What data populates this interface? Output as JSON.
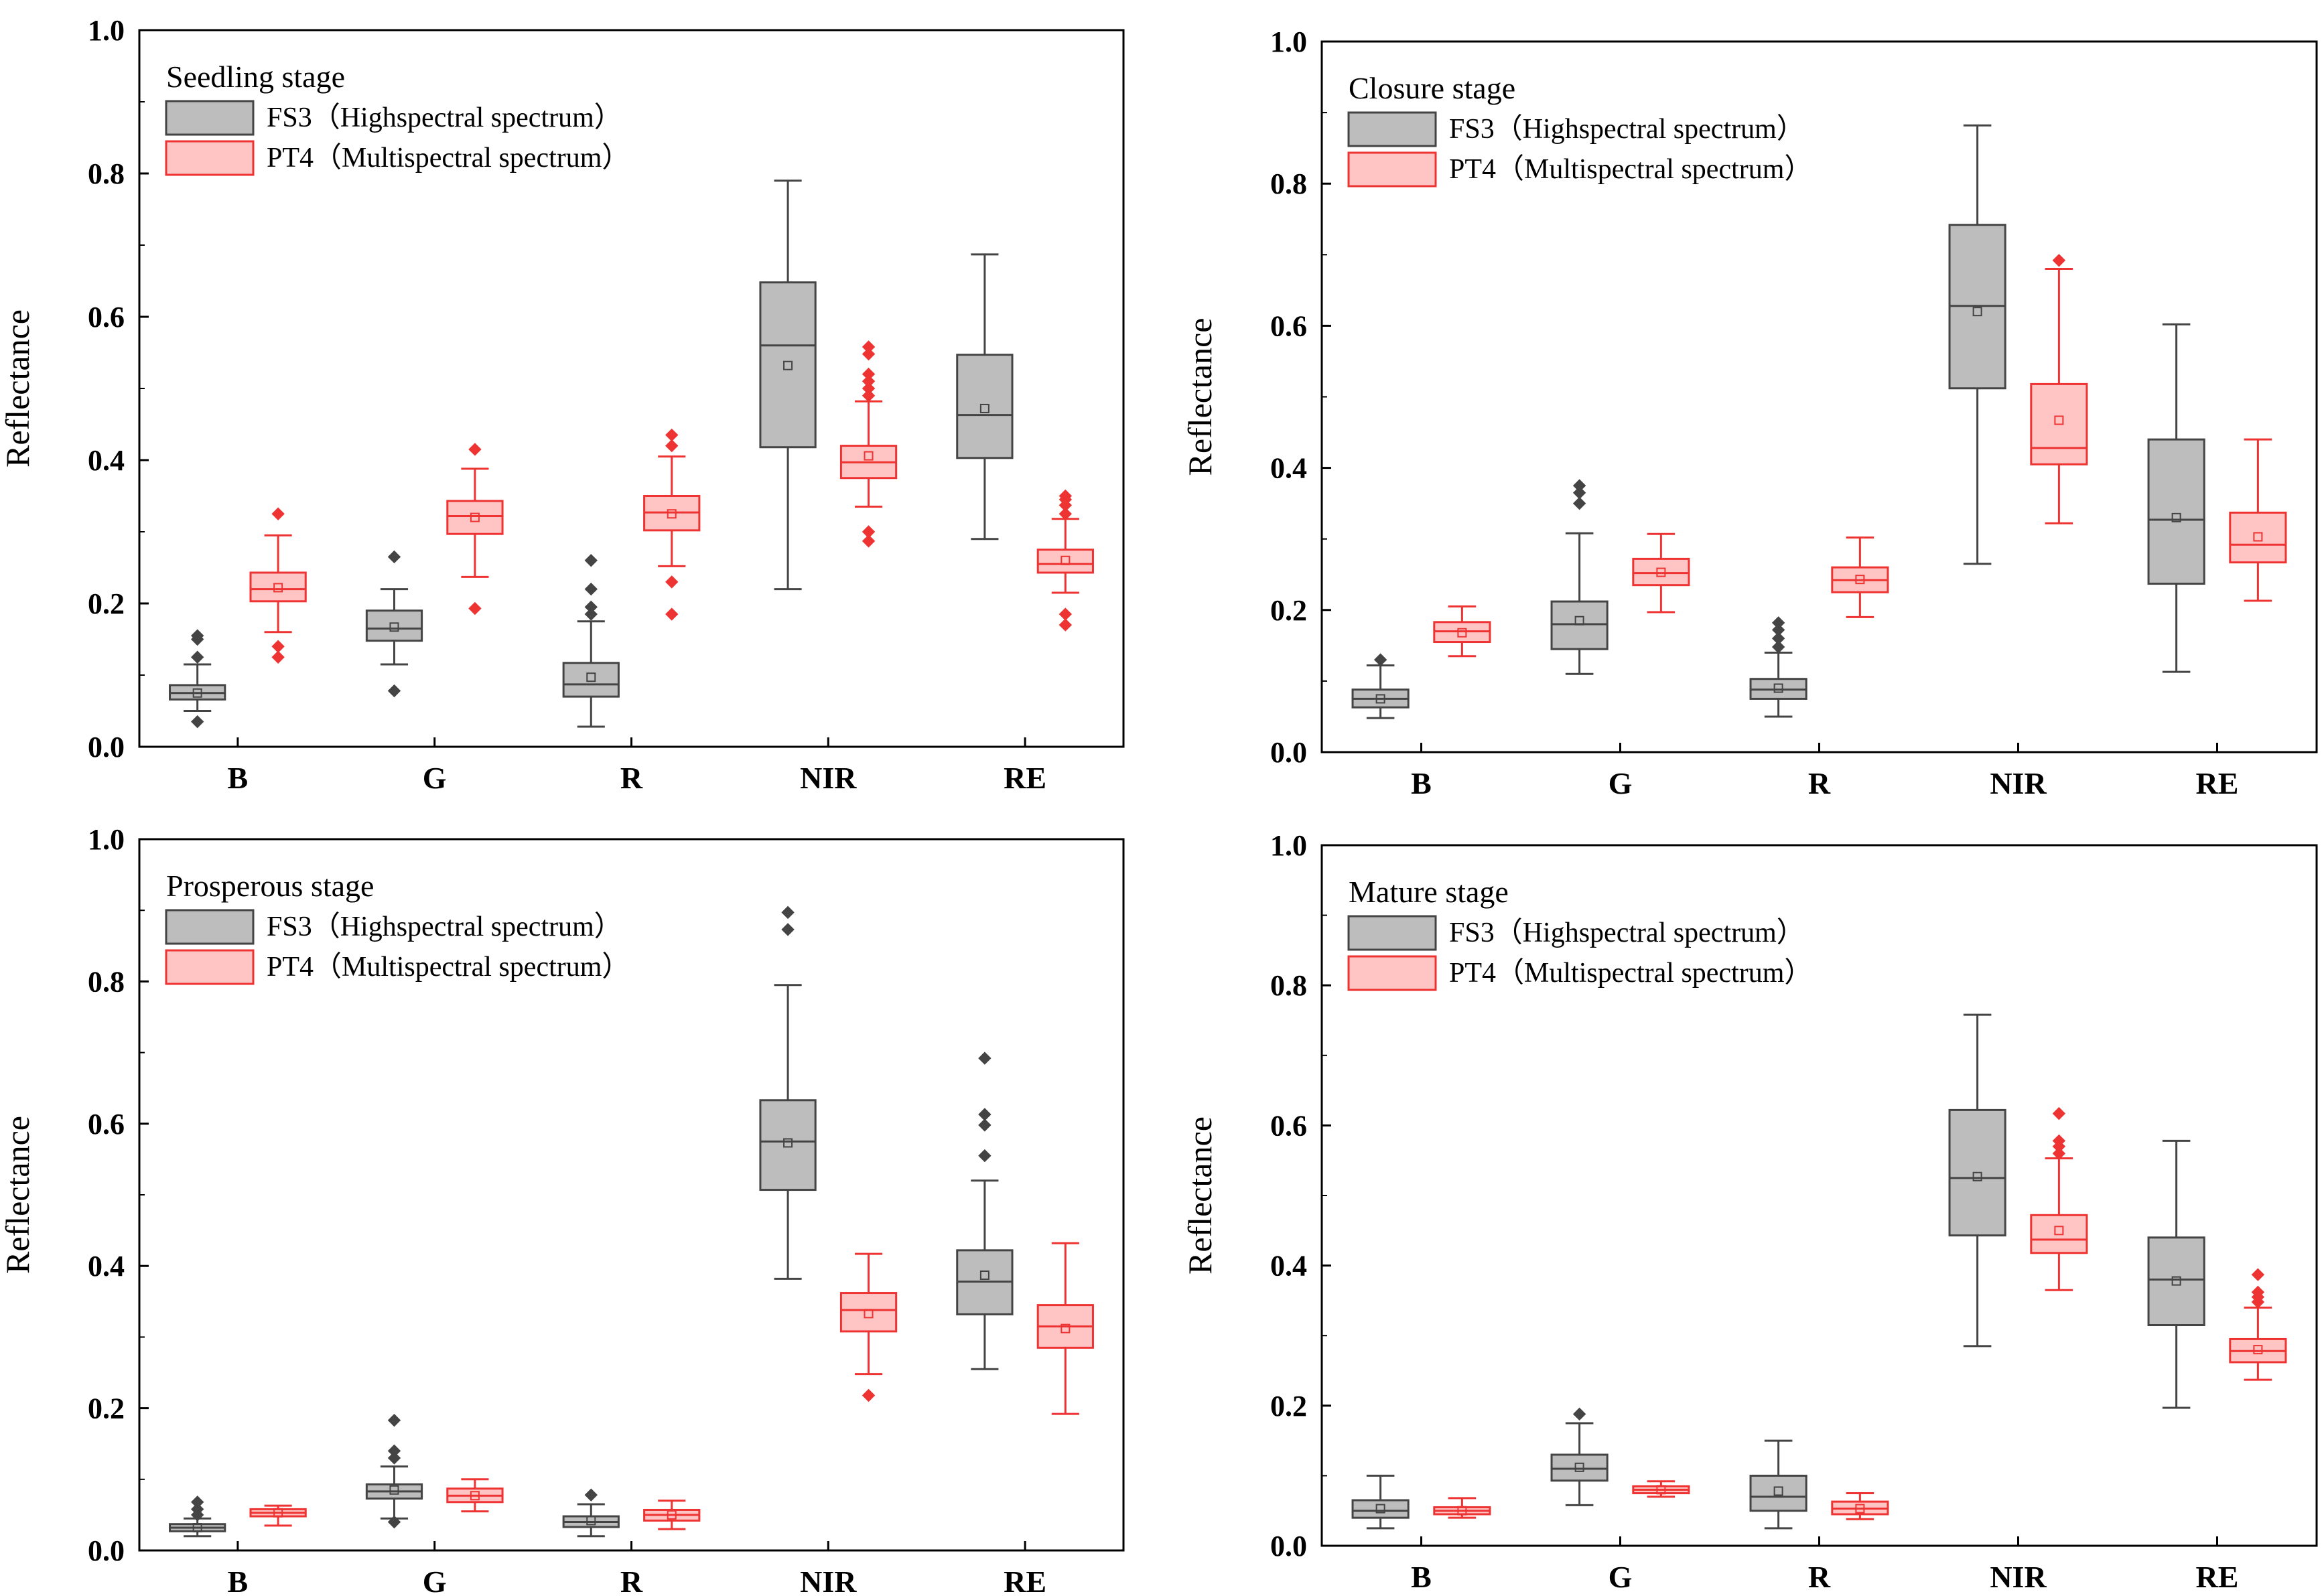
{
  "colors": {
    "fs3_fill": "#bdbdbd",
    "fs3_stroke": "#444444",
    "pt4_fill": "#ffc4c4",
    "pt4_stroke": "#ee3333",
    "axis": "#000000"
  },
  "chart_data": [
    {
      "type": "box",
      "title": "Seedling stage",
      "xlabel": "",
      "ylabel": "Reflectance",
      "ylim": [
        0,
        1.0
      ],
      "yticks": [
        "0.0",
        "0.2",
        "0.4",
        "0.6",
        "0.8",
        "1.0"
      ],
      "categories": [
        "B",
        "G",
        "R",
        "NIR",
        "RE"
      ],
      "legend": [
        "FS3（Highspectral spectrum）",
        "PT4（Multispectral spectrum）"
      ],
      "series": [
        {
          "name": "FS3（Highspectral spectrum）",
          "boxes": [
            {
              "min": 0.05,
              "q1": 0.066,
              "median": 0.075,
              "q3": 0.086,
              "max": 0.115,
              "mean": 0.075,
              "outliers": [
                0.035,
                0.125,
                0.15,
                0.155
              ]
            },
            {
              "min": 0.115,
              "q1": 0.148,
              "median": 0.165,
              "q3": 0.19,
              "max": 0.22,
              "mean": 0.167,
              "outliers": [
                0.078,
                0.265
              ]
            },
            {
              "min": 0.028,
              "q1": 0.07,
              "median": 0.087,
              "q3": 0.117,
              "max": 0.175,
              "mean": 0.097,
              "outliers": [
                0.185,
                0.195,
                0.22,
                0.26
              ]
            },
            {
              "min": 0.22,
              "q1": 0.418,
              "median": 0.56,
              "q3": 0.648,
              "max": 0.79,
              "mean": 0.532,
              "outliers": []
            },
            {
              "min": 0.29,
              "q1": 0.403,
              "median": 0.463,
              "q3": 0.547,
              "max": 0.687,
              "mean": 0.472,
              "outliers": []
            }
          ]
        },
        {
          "name": "PT4（Multispectral spectrum）",
          "boxes": [
            {
              "min": 0.16,
              "q1": 0.203,
              "median": 0.22,
              "q3": 0.243,
              "max": 0.295,
              "mean": 0.222,
              "outliers": [
                0.125,
                0.14,
                0.325
              ]
            },
            {
              "min": 0.237,
              "q1": 0.297,
              "median": 0.322,
              "q3": 0.343,
              "max": 0.388,
              "mean": 0.32,
              "outliers": [
                0.193,
                0.415
              ]
            },
            {
              "min": 0.252,
              "q1": 0.302,
              "median": 0.327,
              "q3": 0.35,
              "max": 0.405,
              "mean": 0.325,
              "outliers": [
                0.185,
                0.23,
                0.42,
                0.435
              ]
            },
            {
              "min": 0.335,
              "q1": 0.375,
              "median": 0.397,
              "q3": 0.42,
              "max": 0.482,
              "mean": 0.406,
              "outliers": [
                0.287,
                0.3,
                0.49,
                0.5,
                0.51,
                0.52,
                0.548,
                0.558
              ]
            },
            {
              "min": 0.215,
              "q1": 0.243,
              "median": 0.255,
              "q3": 0.275,
              "max": 0.318,
              "mean": 0.26,
              "outliers": [
                0.17,
                0.185,
                0.325,
                0.337,
                0.345,
                0.35
              ]
            }
          ]
        }
      ]
    },
    {
      "type": "box",
      "title": "Closure stage",
      "xlabel": "",
      "ylabel": "Reflectance",
      "ylim": [
        0,
        1.0
      ],
      "yticks": [
        "0.0",
        "0.2",
        "0.4",
        "0.6",
        "0.8",
        "1.0"
      ],
      "categories": [
        "B",
        "G",
        "R",
        "NIR",
        "RE"
      ],
      "legend": [
        "FS3（Highspectral spectrum）",
        "PT4（Multispectral spectrum）"
      ],
      "series": [
        {
          "name": "FS3（Highspectral spectrum）",
          "boxes": [
            {
              "min": 0.048,
              "q1": 0.063,
              "median": 0.075,
              "q3": 0.088,
              "max": 0.122,
              "mean": 0.075,
              "outliers": [
                0.13
              ]
            },
            {
              "min": 0.11,
              "q1": 0.145,
              "median": 0.18,
              "q3": 0.212,
              "max": 0.308,
              "mean": 0.185,
              "outliers": [
                0.35,
                0.365,
                0.375
              ]
            },
            {
              "min": 0.05,
              "q1": 0.075,
              "median": 0.088,
              "q3": 0.103,
              "max": 0.14,
              "mean": 0.09,
              "outliers": [
                0.148,
                0.16,
                0.172,
                0.182
              ]
            },
            {
              "min": 0.265,
              "q1": 0.512,
              "median": 0.628,
              "q3": 0.742,
              "max": 0.882,
              "mean": 0.62,
              "outliers": []
            },
            {
              "min": 0.113,
              "q1": 0.237,
              "median": 0.327,
              "q3": 0.44,
              "max": 0.602,
              "mean": 0.33,
              "outliers": []
            }
          ]
        },
        {
          "name": "PT4（Multispectral spectrum）",
          "boxes": [
            {
              "min": 0.135,
              "q1": 0.155,
              "median": 0.17,
              "q3": 0.183,
              "max": 0.205,
              "mean": 0.168,
              "outliers": []
            },
            {
              "min": 0.197,
              "q1": 0.235,
              "median": 0.252,
              "q3": 0.272,
              "max": 0.307,
              "mean": 0.253,
              "outliers": []
            },
            {
              "min": 0.19,
              "q1": 0.225,
              "median": 0.242,
              "q3": 0.26,
              "max": 0.302,
              "mean": 0.243,
              "outliers": []
            },
            {
              "min": 0.322,
              "q1": 0.405,
              "median": 0.428,
              "q3": 0.518,
              "max": 0.68,
              "mean": 0.467,
              "outliers": [
                0.692
              ]
            },
            {
              "min": 0.213,
              "q1": 0.267,
              "median": 0.292,
              "q3": 0.337,
              "max": 0.44,
              "mean": 0.303,
              "outliers": []
            }
          ]
        }
      ]
    },
    {
      "type": "box",
      "title": "Prosperous stage",
      "xlabel": "",
      "ylabel": "Reflectance",
      "ylim": [
        0,
        1.0
      ],
      "yticks": [
        "0.0",
        "0.2",
        "0.4",
        "0.6",
        "0.8",
        "1.0"
      ],
      "categories": [
        "B",
        "G",
        "R",
        "NIR",
        "RE"
      ],
      "legend": [
        "FS3（Highspectral spectrum）",
        "PT4（Multispectral spectrum）"
      ],
      "series": [
        {
          "name": "FS3（Highspectral spectrum）",
          "boxes": [
            {
              "min": 0.02,
              "q1": 0.027,
              "median": 0.032,
              "q3": 0.037,
              "max": 0.045,
              "mean": 0.032,
              "outliers": [
                0.05,
                0.058,
                0.068
              ]
            },
            {
              "min": 0.045,
              "q1": 0.073,
              "median": 0.083,
              "q3": 0.093,
              "max": 0.118,
              "mean": 0.085,
              "outliers": [
                0.04,
                0.13,
                0.14,
                0.183
              ]
            },
            {
              "min": 0.02,
              "q1": 0.033,
              "median": 0.04,
              "q3": 0.048,
              "max": 0.065,
              "mean": 0.042,
              "outliers": [
                0.078
              ]
            },
            {
              "min": 0.382,
              "q1": 0.507,
              "median": 0.575,
              "q3": 0.633,
              "max": 0.795,
              "mean": 0.573,
              "outliers": [
                0.873,
                0.897
              ]
            },
            {
              "min": 0.255,
              "q1": 0.332,
              "median": 0.378,
              "q3": 0.422,
              "max": 0.52,
              "mean": 0.387,
              "outliers": [
                0.555,
                0.598,
                0.613,
                0.692
              ]
            }
          ]
        },
        {
          "name": "PT4（Multispectral spectrum）",
          "boxes": [
            {
              "min": 0.035,
              "q1": 0.048,
              "median": 0.053,
              "q3": 0.058,
              "max": 0.063,
              "mean": 0.053,
              "outliers": []
            },
            {
              "min": 0.055,
              "q1": 0.068,
              "median": 0.077,
              "q3": 0.087,
              "max": 0.1,
              "mean": 0.077,
              "outliers": []
            },
            {
              "min": 0.03,
              "q1": 0.042,
              "median": 0.05,
              "q3": 0.057,
              "max": 0.07,
              "mean": 0.05,
              "outliers": []
            },
            {
              "min": 0.248,
              "q1": 0.308,
              "median": 0.338,
              "q3": 0.362,
              "max": 0.417,
              "mean": 0.333,
              "outliers": [
                0.218
              ]
            },
            {
              "min": 0.192,
              "q1": 0.285,
              "median": 0.315,
              "q3": 0.345,
              "max": 0.432,
              "mean": 0.312,
              "outliers": []
            }
          ]
        }
      ]
    },
    {
      "type": "box",
      "title": "Mature stage",
      "xlabel": "",
      "ylabel": "Reflectance",
      "ylim": [
        0,
        1.0
      ],
      "yticks": [
        "0.0",
        "0.2",
        "0.4",
        "0.6",
        "0.8",
        "1.0"
      ],
      "categories": [
        "B",
        "G",
        "R",
        "NIR",
        "RE"
      ],
      "legend": [
        "FS3（Highspectral spectrum）",
        "PT4（Multispectral spectrum）"
      ],
      "series": [
        {
          "name": "FS3（Highspectral spectrum）",
          "boxes": [
            {
              "min": 0.025,
              "q1": 0.04,
              "median": 0.05,
              "q3": 0.065,
              "max": 0.1,
              "mean": 0.053,
              "outliers": []
            },
            {
              "min": 0.058,
              "q1": 0.093,
              "median": 0.11,
              "q3": 0.13,
              "max": 0.175,
              "mean": 0.112,
              "outliers": [
                0.188
              ]
            },
            {
              "min": 0.025,
              "q1": 0.05,
              "median": 0.07,
              "q3": 0.1,
              "max": 0.15,
              "mean": 0.078,
              "outliers": []
            },
            {
              "min": 0.285,
              "q1": 0.443,
              "median": 0.525,
              "q3": 0.622,
              "max": 0.758,
              "mean": 0.527,
              "outliers": []
            },
            {
              "min": 0.197,
              "q1": 0.315,
              "median": 0.38,
              "q3": 0.44,
              "max": 0.578,
              "mean": 0.378,
              "outliers": []
            }
          ]
        },
        {
          "name": "PT4（Multispectral spectrum）",
          "boxes": [
            {
              "min": 0.04,
              "q1": 0.045,
              "median": 0.05,
              "q3": 0.055,
              "max": 0.068,
              "mean": 0.05,
              "outliers": []
            },
            {
              "min": 0.07,
              "q1": 0.075,
              "median": 0.08,
              "q3": 0.085,
              "max": 0.092,
              "mean": 0.08,
              "outliers": []
            },
            {
              "min": 0.038,
              "q1": 0.045,
              "median": 0.053,
              "q3": 0.063,
              "max": 0.075,
              "mean": 0.053,
              "outliers": []
            },
            {
              "min": 0.365,
              "q1": 0.418,
              "median": 0.437,
              "q3": 0.472,
              "max": 0.553,
              "mean": 0.45,
              "outliers": [
                0.56,
                0.57,
                0.578,
                0.617
              ]
            },
            {
              "min": 0.237,
              "q1": 0.262,
              "median": 0.278,
              "q3": 0.295,
              "max": 0.34,
              "mean": 0.28,
              "outliers": [
                0.348,
                0.355,
                0.362,
                0.387
              ]
            }
          ]
        }
      ]
    }
  ]
}
